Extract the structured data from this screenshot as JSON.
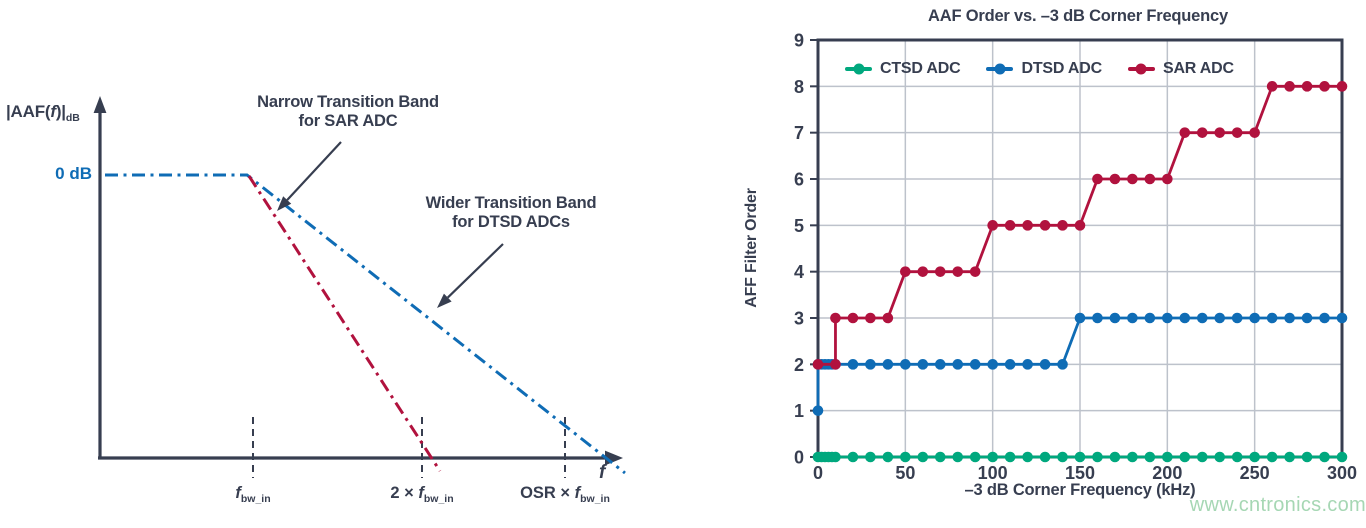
{
  "watermark": {
    "text": "www.cntronics.com",
    "color": "#A6D7B4"
  },
  "colors": {
    "axis_and_text": "#373E50",
    "grid": "#BDC2CB",
    "background": "#FFFFFF",
    "ctsd_green": "#00A87E",
    "dtsd_blue": "#0F6CB5",
    "sar_crimson": "#B1123E"
  },
  "chart_data": [
    {
      "type": "line",
      "role": "conceptual-frequency-response-diagram",
      "y_label_p1": "|AAF(",
      "y_label_f": "f",
      "y_label_p2": ")|",
      "y_label_sub": "dB",
      "zero_db_label": "0 dB",
      "x_end_label": "f",
      "x_ticks": [
        {
          "pre": "",
          "f": "f",
          "sub": "bw_in"
        },
        {
          "pre": "2 × ",
          "f": "f",
          "sub": "bw_in"
        },
        {
          "pre": "OSR × ",
          "f": "f",
          "sub": "bw_in"
        }
      ],
      "annotations": [
        {
          "line1": "Narrow Transition Band",
          "line2": "for SAR ADC",
          "points_to": "SAR AAF response"
        },
        {
          "line1": "Wider Transition Band",
          "line2": "for DTSD ADCs",
          "points_to": "DTSD AAF response"
        }
      ],
      "series": [
        {
          "name": "DTSD AAF response",
          "color": "#0F6CB5",
          "line_style": "dash-dot",
          "description": "Flat at 0 dB until f_bw_in, then shallow roll-off reaching the axis near OSR × f_bw_in"
        },
        {
          "name": "SAR AAF response",
          "color": "#B1123E",
          "line_style": "dash-dot",
          "description": "Rolls off steeply from f_bw_in, reaching the axis just past 2 × f_bw_in"
        }
      ]
    },
    {
      "type": "line",
      "title": "AAF Order vs. –3 dB Corner Frequency",
      "xlabel": "–3 dB Corner Frequency (kHz)",
      "ylabel": "AFF Filter Order",
      "xlim": [
        0,
        300
      ],
      "ylim": [
        0,
        9
      ],
      "xticks": [
        0,
        50,
        100,
        150,
        200,
        250,
        300
      ],
      "yticks": [
        0,
        1,
        2,
        3,
        4,
        5,
        6,
        7,
        8,
        9
      ],
      "grid": true,
      "legend_position": "inside-top",
      "marker": "circle",
      "series": [
        {
          "name": "CTSD ADC",
          "color": "#00A87E",
          "x": [
            0,
            2,
            4,
            6,
            8,
            10,
            20,
            30,
            40,
            50,
            60,
            70,
            80,
            90,
            100,
            110,
            120,
            130,
            140,
            150,
            160,
            170,
            180,
            190,
            200,
            210,
            220,
            230,
            240,
            250,
            260,
            270,
            280,
            290,
            300
          ],
          "y": [
            0,
            0,
            0,
            0,
            0,
            0,
            0,
            0,
            0,
            0,
            0,
            0,
            0,
            0,
            0,
            0,
            0,
            0,
            0,
            0,
            0,
            0,
            0,
            0,
            0,
            0,
            0,
            0,
            0,
            0,
            0,
            0,
            0,
            0,
            0
          ]
        },
        {
          "name": "DTSD ADC",
          "color": "#0F6CB5",
          "x": [
            0,
            0,
            2,
            4,
            6,
            8,
            10,
            20,
            30,
            40,
            50,
            60,
            70,
            80,
            90,
            100,
            110,
            120,
            130,
            140,
            150,
            160,
            170,
            180,
            190,
            200,
            210,
            220,
            230,
            240,
            250,
            260,
            270,
            280,
            290,
            300
          ],
          "y": [
            1,
            2,
            2,
            2,
            2,
            2,
            2,
            2,
            2,
            2,
            2,
            2,
            2,
            2,
            2,
            2,
            2,
            2,
            2,
            2,
            3,
            3,
            3,
            3,
            3,
            3,
            3,
            3,
            3,
            3,
            3,
            3,
            3,
            3,
            3,
            3
          ]
        },
        {
          "name": "SAR ADC",
          "color": "#B1123E",
          "x": [
            0,
            10,
            10,
            20,
            30,
            40,
            50,
            60,
            70,
            80,
            90,
            100,
            110,
            120,
            130,
            140,
            150,
            160,
            170,
            180,
            190,
            200,
            210,
            220,
            230,
            240,
            250,
            260,
            270,
            280,
            290,
            300
          ],
          "y": [
            2,
            2,
            3,
            3,
            3,
            3,
            4,
            4,
            4,
            4,
            4,
            5,
            5,
            5,
            5,
            5,
            5,
            6,
            6,
            6,
            6,
            6,
            7,
            7,
            7,
            7,
            7,
            8,
            8,
            8,
            8,
            8
          ]
        }
      ]
    }
  ]
}
